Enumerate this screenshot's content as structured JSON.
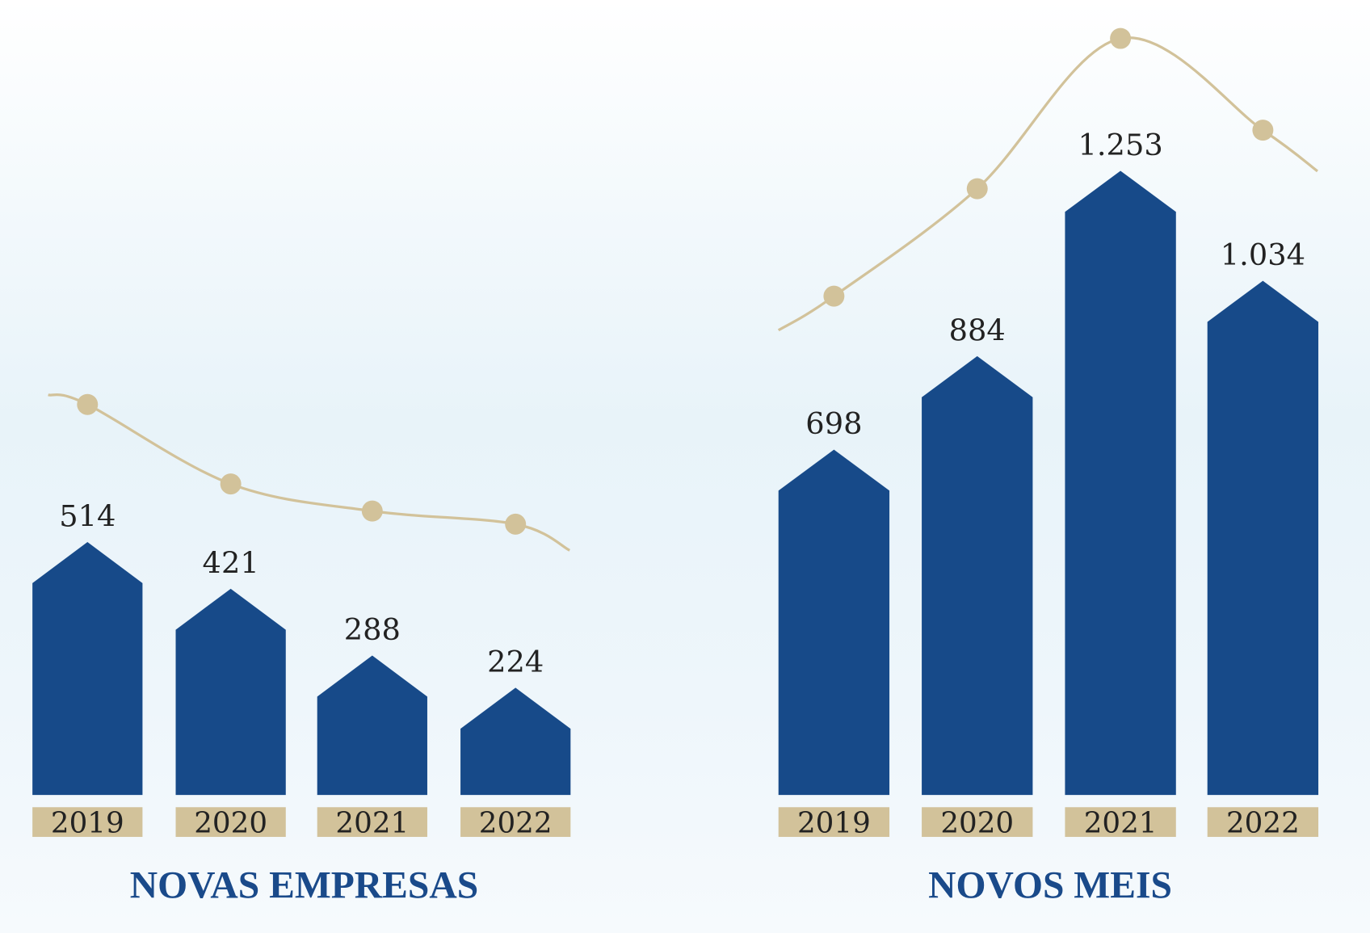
{
  "colors": {
    "bar": "#174a89",
    "label_bg": "#d2c29a",
    "line": "#d2c29a",
    "title": "#1a4a8a",
    "text": "#222222"
  },
  "chart_data": [
    {
      "type": "bar",
      "title": "NOVAS EMPRESAS",
      "categories": [
        "2019",
        "2020",
        "2021",
        "2022"
      ],
      "values": [
        514,
        421,
        288,
        224
      ],
      "value_labels": [
        "514",
        "421",
        "288",
        "224"
      ],
      "trend_line": true,
      "xlabel": "",
      "ylabel": ""
    },
    {
      "type": "bar",
      "title": "NOVOS MEIS",
      "categories": [
        "2019",
        "2020",
        "2021",
        "2022"
      ],
      "values": [
        698,
        884,
        1253,
        1034
      ],
      "value_labels": [
        "698",
        "884",
        "1.253",
        "1.034"
      ],
      "trend_line": true,
      "xlabel": "",
      "ylabel": ""
    }
  ]
}
